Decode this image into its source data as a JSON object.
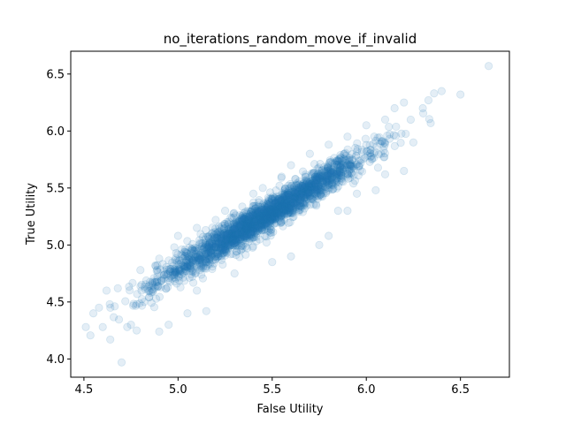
{
  "chart_data": {
    "type": "scatter",
    "title": "no_iterations_random_move_if_invalid",
    "xlabel": "False Utility",
    "ylabel": "True Utility",
    "xlim": [
      4.43,
      6.76
    ],
    "ylim": [
      3.84,
      6.7
    ],
    "xticks": [
      4.5,
      5.0,
      5.5,
      6.0,
      6.5
    ],
    "yticks": [
      4.0,
      4.5,
      5.0,
      5.5,
      6.0,
      6.5
    ],
    "xtick_labels": [
      "4.5",
      "5.0",
      "5.5",
      "6.0",
      "6.5"
    ],
    "ytick_labels": [
      "4.0",
      "4.5",
      "5.0",
      "5.5",
      "6.0",
      "6.5"
    ],
    "grid": false,
    "legend": "none",
    "marker_color": "#1f77b4",
    "marker_alpha": 0.12,
    "series": [
      {
        "trend": {
          "x_range": [
            4.5,
            6.65
          ],
          "y_at_x_min": 4.28,
          "y_at_x_max": 6.45,
          "y_spread_sd": 0.07
        },
        "points": [
          [
            4.51,
            4.28
          ],
          [
            4.55,
            4.4
          ],
          [
            4.58,
            4.45
          ],
          [
            4.6,
            4.28
          ],
          [
            4.64,
            4.17
          ],
          [
            4.7,
            3.97
          ],
          [
            4.73,
            4.28
          ],
          [
            4.75,
            4.3
          ],
          [
            4.78,
            4.25
          ],
          [
            4.82,
            4.5
          ],
          [
            4.9,
            4.24
          ],
          [
            4.95,
            4.3
          ],
          [
            5.05,
            4.4
          ],
          [
            5.15,
            4.42
          ],
          [
            5.1,
            4.6
          ],
          [
            5.3,
            4.75
          ],
          [
            5.5,
            4.85
          ],
          [
            5.6,
            4.9
          ],
          [
            5.75,
            5.0
          ],
          [
            5.8,
            5.08
          ],
          [
            5.85,
            5.3
          ],
          [
            5.9,
            5.3
          ],
          [
            5.95,
            5.45
          ],
          [
            6.05,
            5.48
          ],
          [
            6.1,
            5.62
          ],
          [
            6.2,
            5.65
          ],
          [
            6.25,
            5.9
          ],
          [
            6.3,
            6.2
          ],
          [
            6.33,
            6.27
          ],
          [
            6.36,
            6.33
          ],
          [
            6.4,
            6.35
          ],
          [
            6.5,
            6.32
          ],
          [
            6.65,
            6.57
          ],
          [
            4.62,
            4.6
          ],
          [
            4.68,
            4.62
          ],
          [
            4.8,
            4.78
          ],
          [
            4.9,
            4.88
          ],
          [
            4.98,
            4.98
          ],
          [
            5.0,
            5.08
          ],
          [
            5.1,
            5.15
          ],
          [
            5.2,
            5.22
          ],
          [
            5.25,
            5.3
          ],
          [
            5.4,
            5.45
          ],
          [
            5.45,
            5.5
          ],
          [
            5.55,
            5.6
          ],
          [
            5.6,
            5.7
          ],
          [
            5.7,
            5.8
          ],
          [
            5.8,
            5.88
          ],
          [
            5.9,
            5.95
          ],
          [
            6.0,
            6.05
          ],
          [
            6.1,
            6.1
          ],
          [
            6.15,
            6.2
          ],
          [
            6.2,
            6.25
          ]
        ]
      }
    ]
  }
}
